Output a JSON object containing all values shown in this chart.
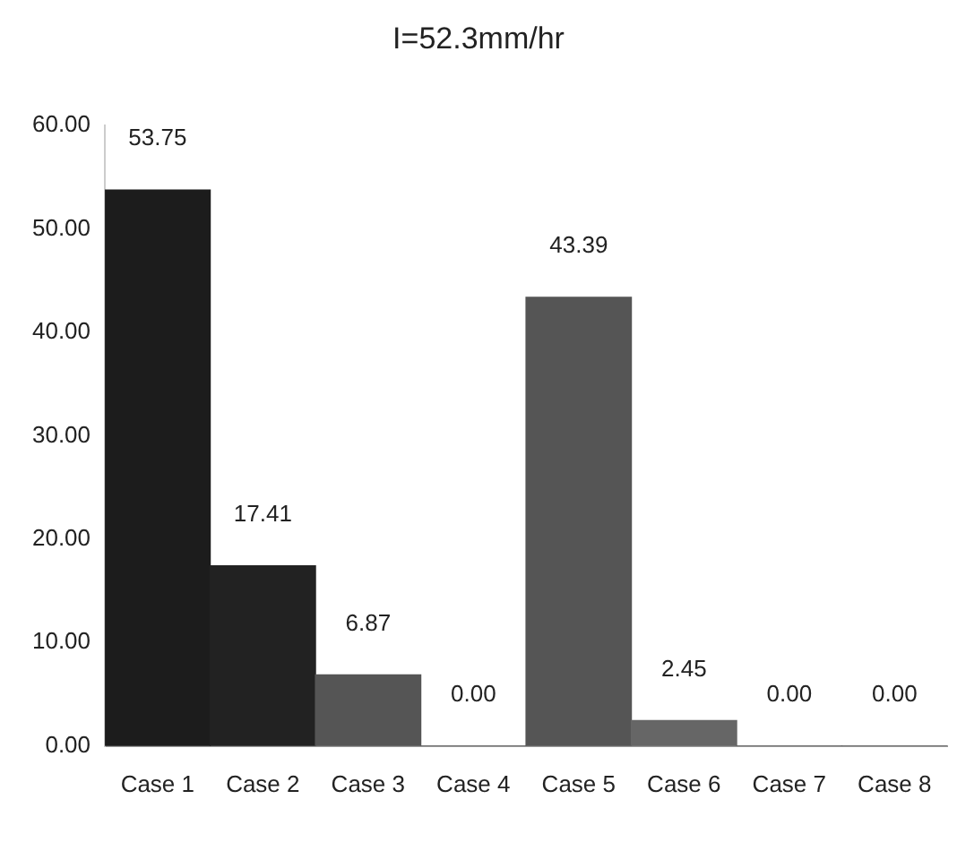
{
  "chart_data": {
    "type": "bar",
    "title": "I=52.3mm/hr",
    "categories": [
      "Case 1",
      "Case 2",
      "Case 3",
      "Case 4",
      "Case 5",
      "Case 6",
      "Case 7",
      "Case 8"
    ],
    "values": [
      53.75,
      17.41,
      6.87,
      0,
      43.39,
      2.45,
      0,
      0
    ],
    "colors": [
      "#1c1c1c",
      "#222222",
      "#555555",
      "#555555",
      "#555555",
      "#666666",
      "#555555",
      "#555555"
    ],
    "value_labels": [
      "53.75",
      "17.41",
      "6.87",
      "0.00",
      "43.39",
      "2.45",
      "0.00",
      "0.00"
    ],
    "ylim": [
      0,
      60
    ],
    "yticks": [
      {
        "value": 0,
        "label": "0.00"
      },
      {
        "value": 10,
        "label": "10.00"
      },
      {
        "value": 20,
        "label": "20.00"
      },
      {
        "value": 30,
        "label": "30.00"
      },
      {
        "value": 40,
        "label": "40.00"
      },
      {
        "value": 50,
        "label": "50.00"
      },
      {
        "value": 60,
        "label": "60.00"
      }
    ],
    "grid": false,
    "legend": false
  }
}
